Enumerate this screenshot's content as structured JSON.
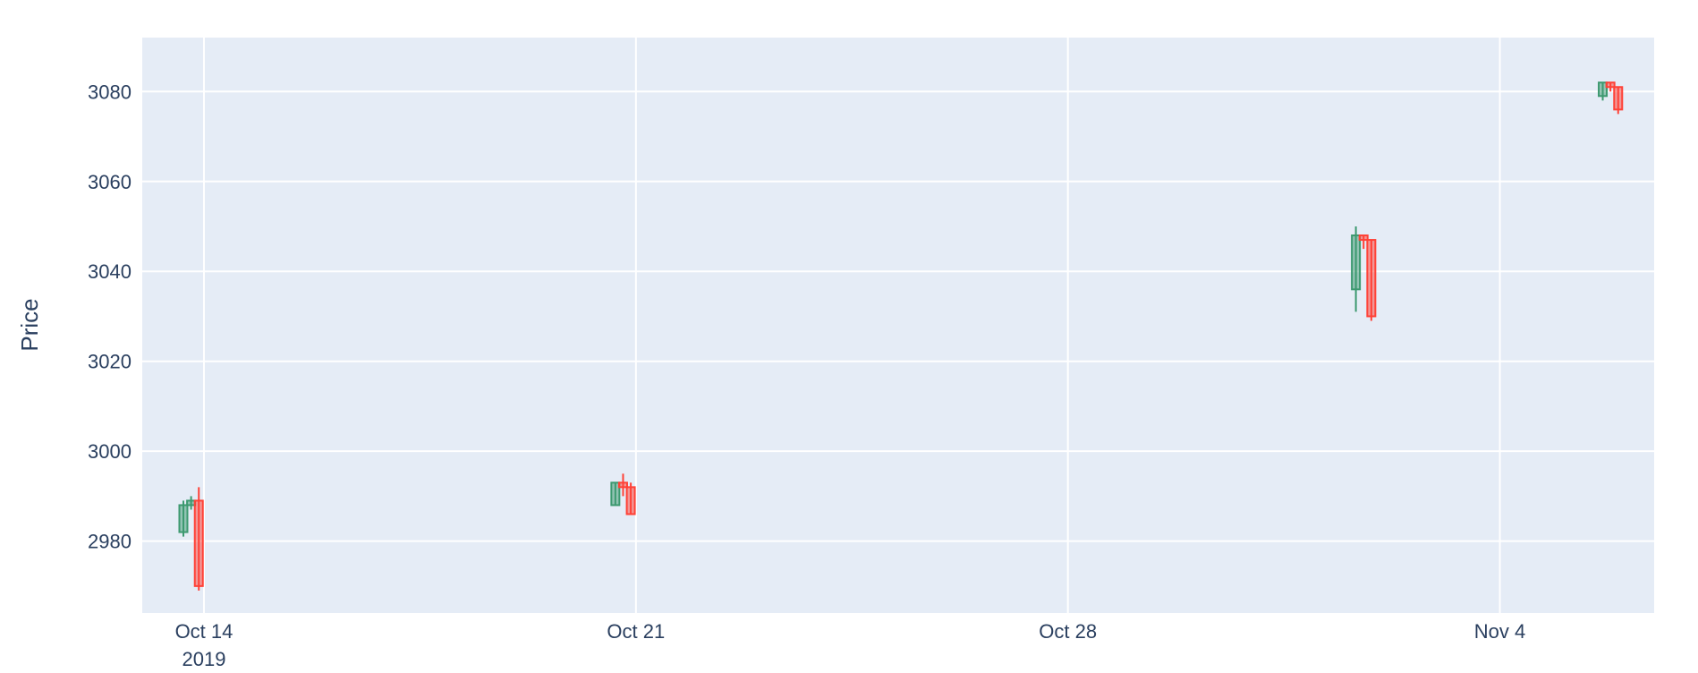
{
  "chart_data": {
    "type": "candlestick",
    "title": "",
    "xlabel": "",
    "ylabel": "Price",
    "x_axis_type": "date",
    "xlim": [
      "2019-10-13T00:00",
      "2019-11-06T12:00"
    ],
    "ylim": [
      2964,
      3092
    ],
    "grid": true,
    "legend": "none",
    "x_ticks": [
      {
        "date": "2019-10-14",
        "label": "Oct 14",
        "sublabel": "2019"
      },
      {
        "date": "2019-10-21",
        "label": "Oct 21",
        "sublabel": ""
      },
      {
        "date": "2019-10-28",
        "label": "Oct 28",
        "sublabel": ""
      },
      {
        "date": "2019-11-04",
        "label": "Nov 4",
        "sublabel": ""
      }
    ],
    "y_ticks": [
      {
        "value": 2980,
        "label": "2980"
      },
      {
        "value": 3000,
        "label": "3000"
      },
      {
        "value": 3020,
        "label": "3020"
      },
      {
        "value": 3040,
        "label": "3040"
      },
      {
        "value": 3060,
        "label": "3060"
      },
      {
        "value": 3080,
        "label": "3080"
      }
    ],
    "increasing_color": "#3d9970",
    "decreasing_color": "#ff4136",
    "candles": [
      {
        "time": "2019-10-13T16:00",
        "open": 2982,
        "high": 2989,
        "low": 2981,
        "close": 2988
      },
      {
        "time": "2019-10-13T19:00",
        "open": 2988,
        "high": 2990,
        "low": 2987,
        "close": 2989
      },
      {
        "time": "2019-10-13T22:00",
        "open": 2989,
        "high": 2992,
        "low": 2969,
        "close": 2970
      },
      {
        "time": "2019-10-20T16:00",
        "open": 2988,
        "high": 2993,
        "low": 2988,
        "close": 2993
      },
      {
        "time": "2019-10-20T19:00",
        "open": 2993,
        "high": 2995,
        "low": 2990,
        "close": 2992
      },
      {
        "time": "2019-10-20T22:00",
        "open": 2992,
        "high": 2993,
        "low": 2986,
        "close": 2986
      },
      {
        "time": "2019-11-01T16:00",
        "open": 3036,
        "high": 3050,
        "low": 3031,
        "close": 3048
      },
      {
        "time": "2019-11-01T19:00",
        "open": 3048,
        "high": 3048,
        "low": 3045,
        "close": 3047
      },
      {
        "time": "2019-11-01T22:00",
        "open": 3047,
        "high": 3047,
        "low": 3029,
        "close": 3030
      },
      {
        "time": "2019-11-05T16:00",
        "open": 3079,
        "high": 3082,
        "low": 3078,
        "close": 3082
      },
      {
        "time": "2019-11-05T19:00",
        "open": 3082,
        "high": 3082,
        "low": 3080,
        "close": 3081
      },
      {
        "time": "2019-11-05T22:00",
        "open": 3081,
        "high": 3081,
        "low": 3075,
        "close": 3076
      }
    ]
  }
}
